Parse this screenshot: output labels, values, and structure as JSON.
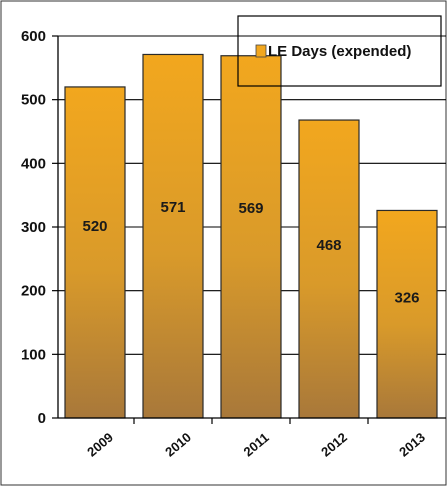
{
  "chart_data": {
    "type": "bar",
    "categories": [
      "2009",
      "2010",
      "2011",
      "2012",
      "2013"
    ],
    "series": [
      {
        "name": "LE Days (expended)",
        "values": [
          520,
          571,
          569,
          468,
          326
        ]
      }
    ],
    "data_labels": [
      "520",
      "571",
      "569",
      "468",
      "326"
    ],
    "y_ticks": [
      0,
      100,
      200,
      300,
      400,
      500,
      600
    ],
    "ylim": [
      0,
      600
    ],
    "grid": true,
    "legend_position": "top-right",
    "colors": {
      "bar_top": "#F2A71E",
      "bar_bottom": "#A8783A",
      "bar_stroke": "#2a2a2a",
      "grid": "#000000",
      "legend_swatch": "#F2A71E"
    }
  }
}
